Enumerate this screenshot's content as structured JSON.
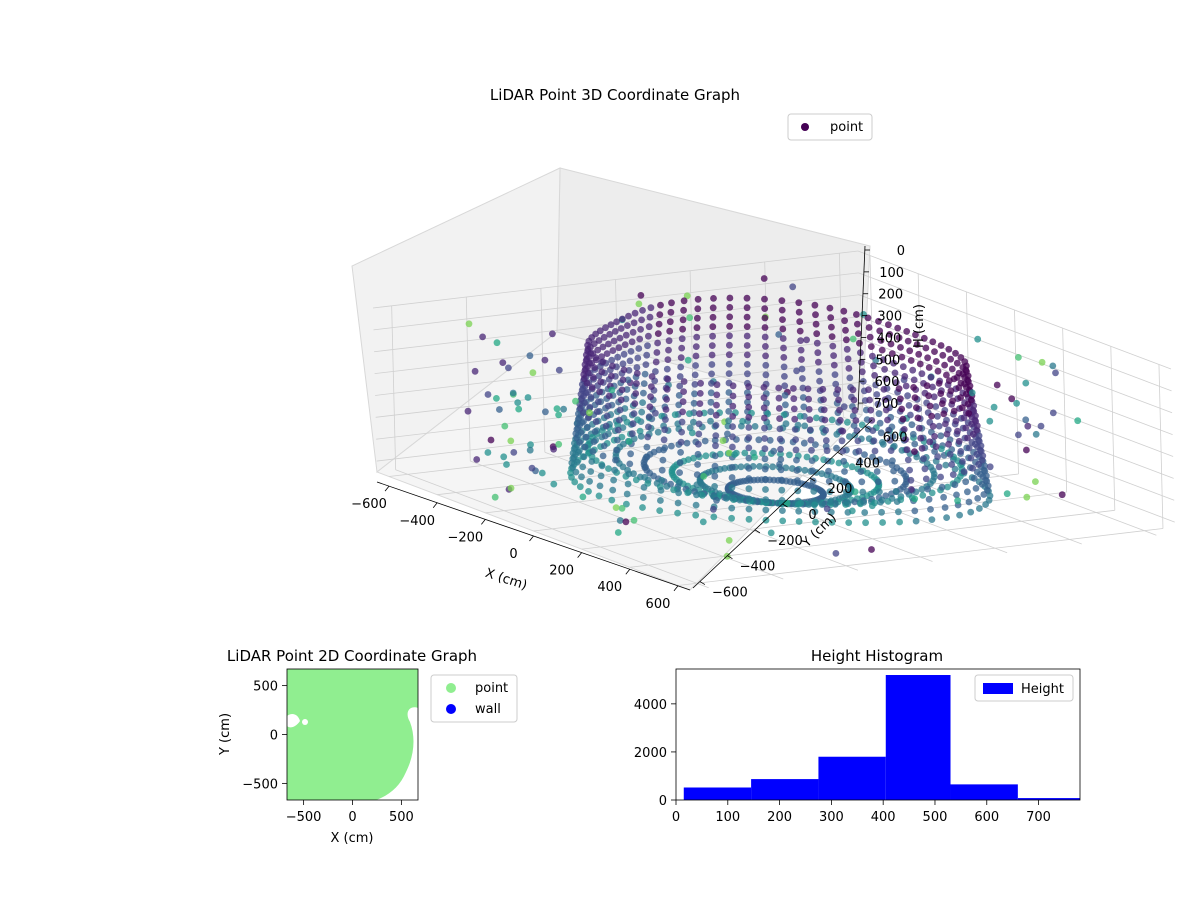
{
  "chart_data": [
    {
      "type": "scatter3d",
      "title": "LiDAR Point 3D Coordinate Graph",
      "xlabel": "X (cm)",
      "ylabel": "Y (cm)",
      "zlabel": "H (cm)",
      "xticks": [
        "−600",
        "−400",
        "−200",
        "0",
        "200",
        "400",
        "600"
      ],
      "yticks": [
        "−600",
        "−400",
        "−200",
        "0",
        "200",
        "400",
        "600"
      ],
      "zticks": [
        "0",
        "100",
        "200",
        "300",
        "400",
        "500",
        "600",
        "700"
      ],
      "xlim": [
        -650,
        650
      ],
      "ylim": [
        -650,
        650
      ],
      "zlim": [
        0,
        750
      ],
      "z_inverted": true,
      "legend": {
        "entries": [
          "point"
        ],
        "placement": "top-right"
      },
      "colormap": "viridis",
      "grid": true
    },
    {
      "type": "scatter",
      "title": "LiDAR Point 2D Coordinate Graph",
      "xlabel": "X (cm)",
      "ylabel": "Y (cm)",
      "xticks": [
        "−500",
        "0",
        "500"
      ],
      "yticks": [
        "500",
        "0",
        "−500"
      ],
      "xlim": [
        -670,
        670
      ],
      "ylim": [
        -670,
        670
      ],
      "series": [
        {
          "name": "point",
          "color": "#90ee90"
        },
        {
          "name": "wall",
          "color": "#0000ff"
        }
      ],
      "legend": {
        "placement": "outside-right"
      }
    },
    {
      "type": "bar",
      "title": "Height Histogram",
      "bin_edges": [
        15,
        145,
        275,
        405,
        530,
        660,
        780
      ],
      "values": [
        520,
        870,
        1800,
        5200,
        650,
        80
      ],
      "xticks": [
        "0",
        "100",
        "200",
        "300",
        "400",
        "500",
        "600",
        "700"
      ],
      "yticks": [
        "0",
        "2000",
        "4000"
      ],
      "xlim": [
        0,
        780
      ],
      "ylim": [
        0,
        5450
      ],
      "series": [
        {
          "name": "Height",
          "color": "#0000ff"
        }
      ],
      "legend": {
        "placement": "top-right"
      }
    }
  ]
}
